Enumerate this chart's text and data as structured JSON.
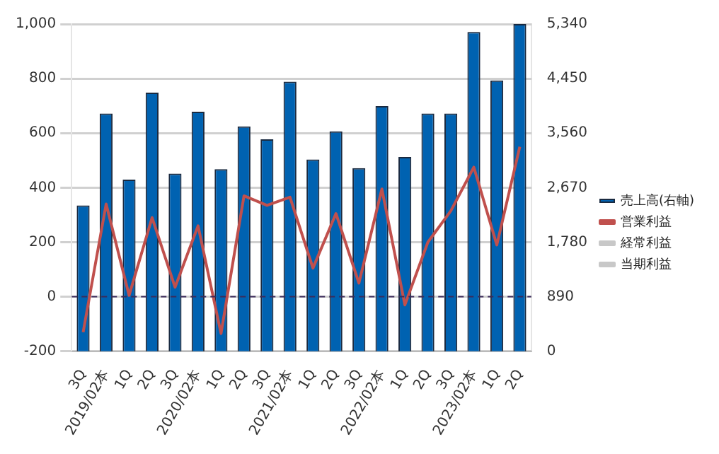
{
  "chart_data": {
    "type": "bar",
    "categories": [
      "3Q",
      "2019/02本",
      "1Q",
      "2Q",
      "3Q",
      "2020/02本",
      "1Q",
      "2Q",
      "3Q",
      "2021/02本",
      "1Q",
      "2Q",
      "3Q",
      "2022/02本",
      "1Q",
      "2Q",
      "3Q",
      "2023/02本",
      "1Q",
      "2Q"
    ],
    "series": [
      {
        "name": "売上高(右軸)",
        "axis": "y2",
        "color": "#0062b1",
        "values": [
          2380,
          3880,
          2800,
          4220,
          2900,
          3910,
          2970,
          3670,
          3460,
          4400,
          3130,
          3590,
          2990,
          4000,
          3170,
          3880,
          3880,
          5210,
          4420,
          5340
        ]
      },
      {
        "name": "営業利益",
        "type": "line",
        "color": "#c0504d",
        "values": [
          -130,
          340,
          5,
          290,
          35,
          260,
          -135,
          370,
          335,
          365,
          105,
          305,
          50,
          395,
          -30,
          200,
          315,
          475,
          190,
          550
        ]
      },
      {
        "name": "経常利益",
        "type": "line",
        "color": "#c8c8c8",
        "values": [
          null,
          null,
          null,
          null,
          null,
          null,
          null,
          null,
          null,
          null,
          null,
          null,
          null,
          null,
          null,
          null,
          null,
          null,
          null,
          null
        ]
      },
      {
        "name": "当期利益",
        "type": "line",
        "color": "#c8c8c8",
        "values": [
          null,
          null,
          null,
          null,
          null,
          null,
          null,
          null,
          null,
          null,
          null,
          null,
          null,
          null,
          null,
          null,
          null,
          null,
          null,
          null
        ]
      }
    ],
    "ylim": [
      -200,
      1000
    ],
    "yticks": [
      {
        "value": -200,
        "label": "-200"
      },
      0,
      200,
      400,
      600,
      800,
      {
        "value": 1000,
        "label": "1,000"
      }
    ],
    "y2lim": [
      0,
      5340
    ],
    "y2ticks": [
      0,
      890,
      {
        "value": 1780,
        "label": "1,780"
      },
      {
        "value": 2670,
        "label": "2,670"
      },
      {
        "value": 3560,
        "label": "3,560"
      },
      {
        "value": 4450,
        "label": "4,450"
      },
      {
        "value": 5340,
        "label": "5,340"
      }
    ],
    "ref_lines": [
      {
        "axis": "y",
        "value": 0,
        "color": "#3a2a5a",
        "line_style": "dashed"
      }
    ],
    "grid": "y",
    "legend": "right",
    "marker": "none"
  }
}
